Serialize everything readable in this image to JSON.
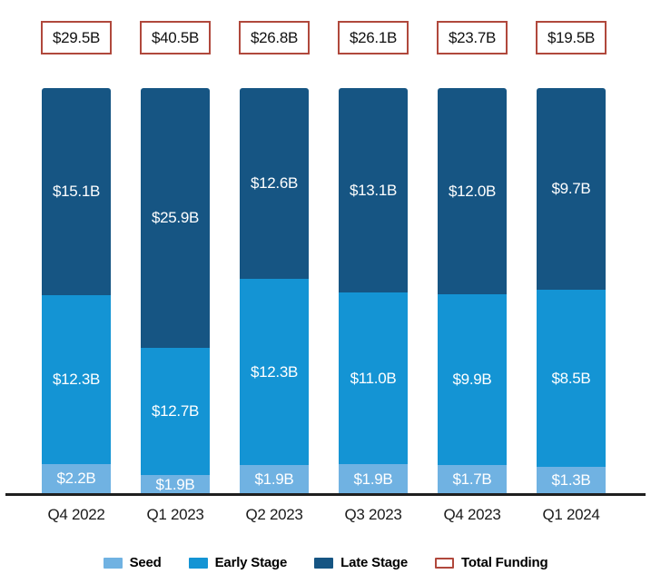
{
  "chart_data": {
    "type": "bar",
    "variant": "100pct-stacked-column",
    "categories": [
      "Q4 2022",
      "Q1 2023",
      "Q2 2023",
      "Q3 2023",
      "Q4 2023",
      "Q1 2024"
    ],
    "totals": {
      "name": "Total Funding",
      "values": [
        29.5,
        40.5,
        26.8,
        26.1,
        23.7,
        19.5
      ],
      "labels": [
        "$29.5B",
        "$40.5B",
        "$26.8B",
        "$26.1B",
        "$23.7B",
        "$19.5B"
      ]
    },
    "series": [
      {
        "name": "Seed",
        "color": "#70B2E2",
        "values": [
          2.2,
          1.9,
          1.9,
          1.9,
          1.7,
          1.3
        ],
        "labels": [
          "$2.2B",
          "$1.9B",
          "$1.9B",
          "$1.9B",
          "$1.7B",
          "$1.3B"
        ]
      },
      {
        "name": "Early Stage",
        "color": "#1494D4",
        "values": [
          12.3,
          12.7,
          12.3,
          11.0,
          9.9,
          8.5
        ],
        "labels": [
          "$12.3B",
          "$12.7B",
          "$12.3B",
          "$11.0B",
          "$9.9B",
          "$8.5B"
        ]
      },
      {
        "name": "Late Stage",
        "color": "#165583",
        "values": [
          15.1,
          25.9,
          12.6,
          13.1,
          12.0,
          9.7
        ],
        "labels": [
          "$15.1B",
          "$25.9B",
          "$12.6B",
          "$13.1B",
          "$12.0B",
          "$9.7B"
        ]
      }
    ],
    "legend": [
      {
        "label": "Seed",
        "swatch": "fill",
        "color": "#70B2E2"
      },
      {
        "label": "Early Stage",
        "swatch": "fill",
        "color": "#1494D4"
      },
      {
        "label": "Late Stage",
        "swatch": "fill",
        "color": "#165583"
      },
      {
        "label": "Total Funding",
        "swatch": "outline",
        "color": "#B0483C"
      }
    ],
    "axis": {
      "line_color": "#1f1f1f",
      "grid": false,
      "legend_position": "bottom"
    },
    "accent_red": "#B0483C"
  }
}
